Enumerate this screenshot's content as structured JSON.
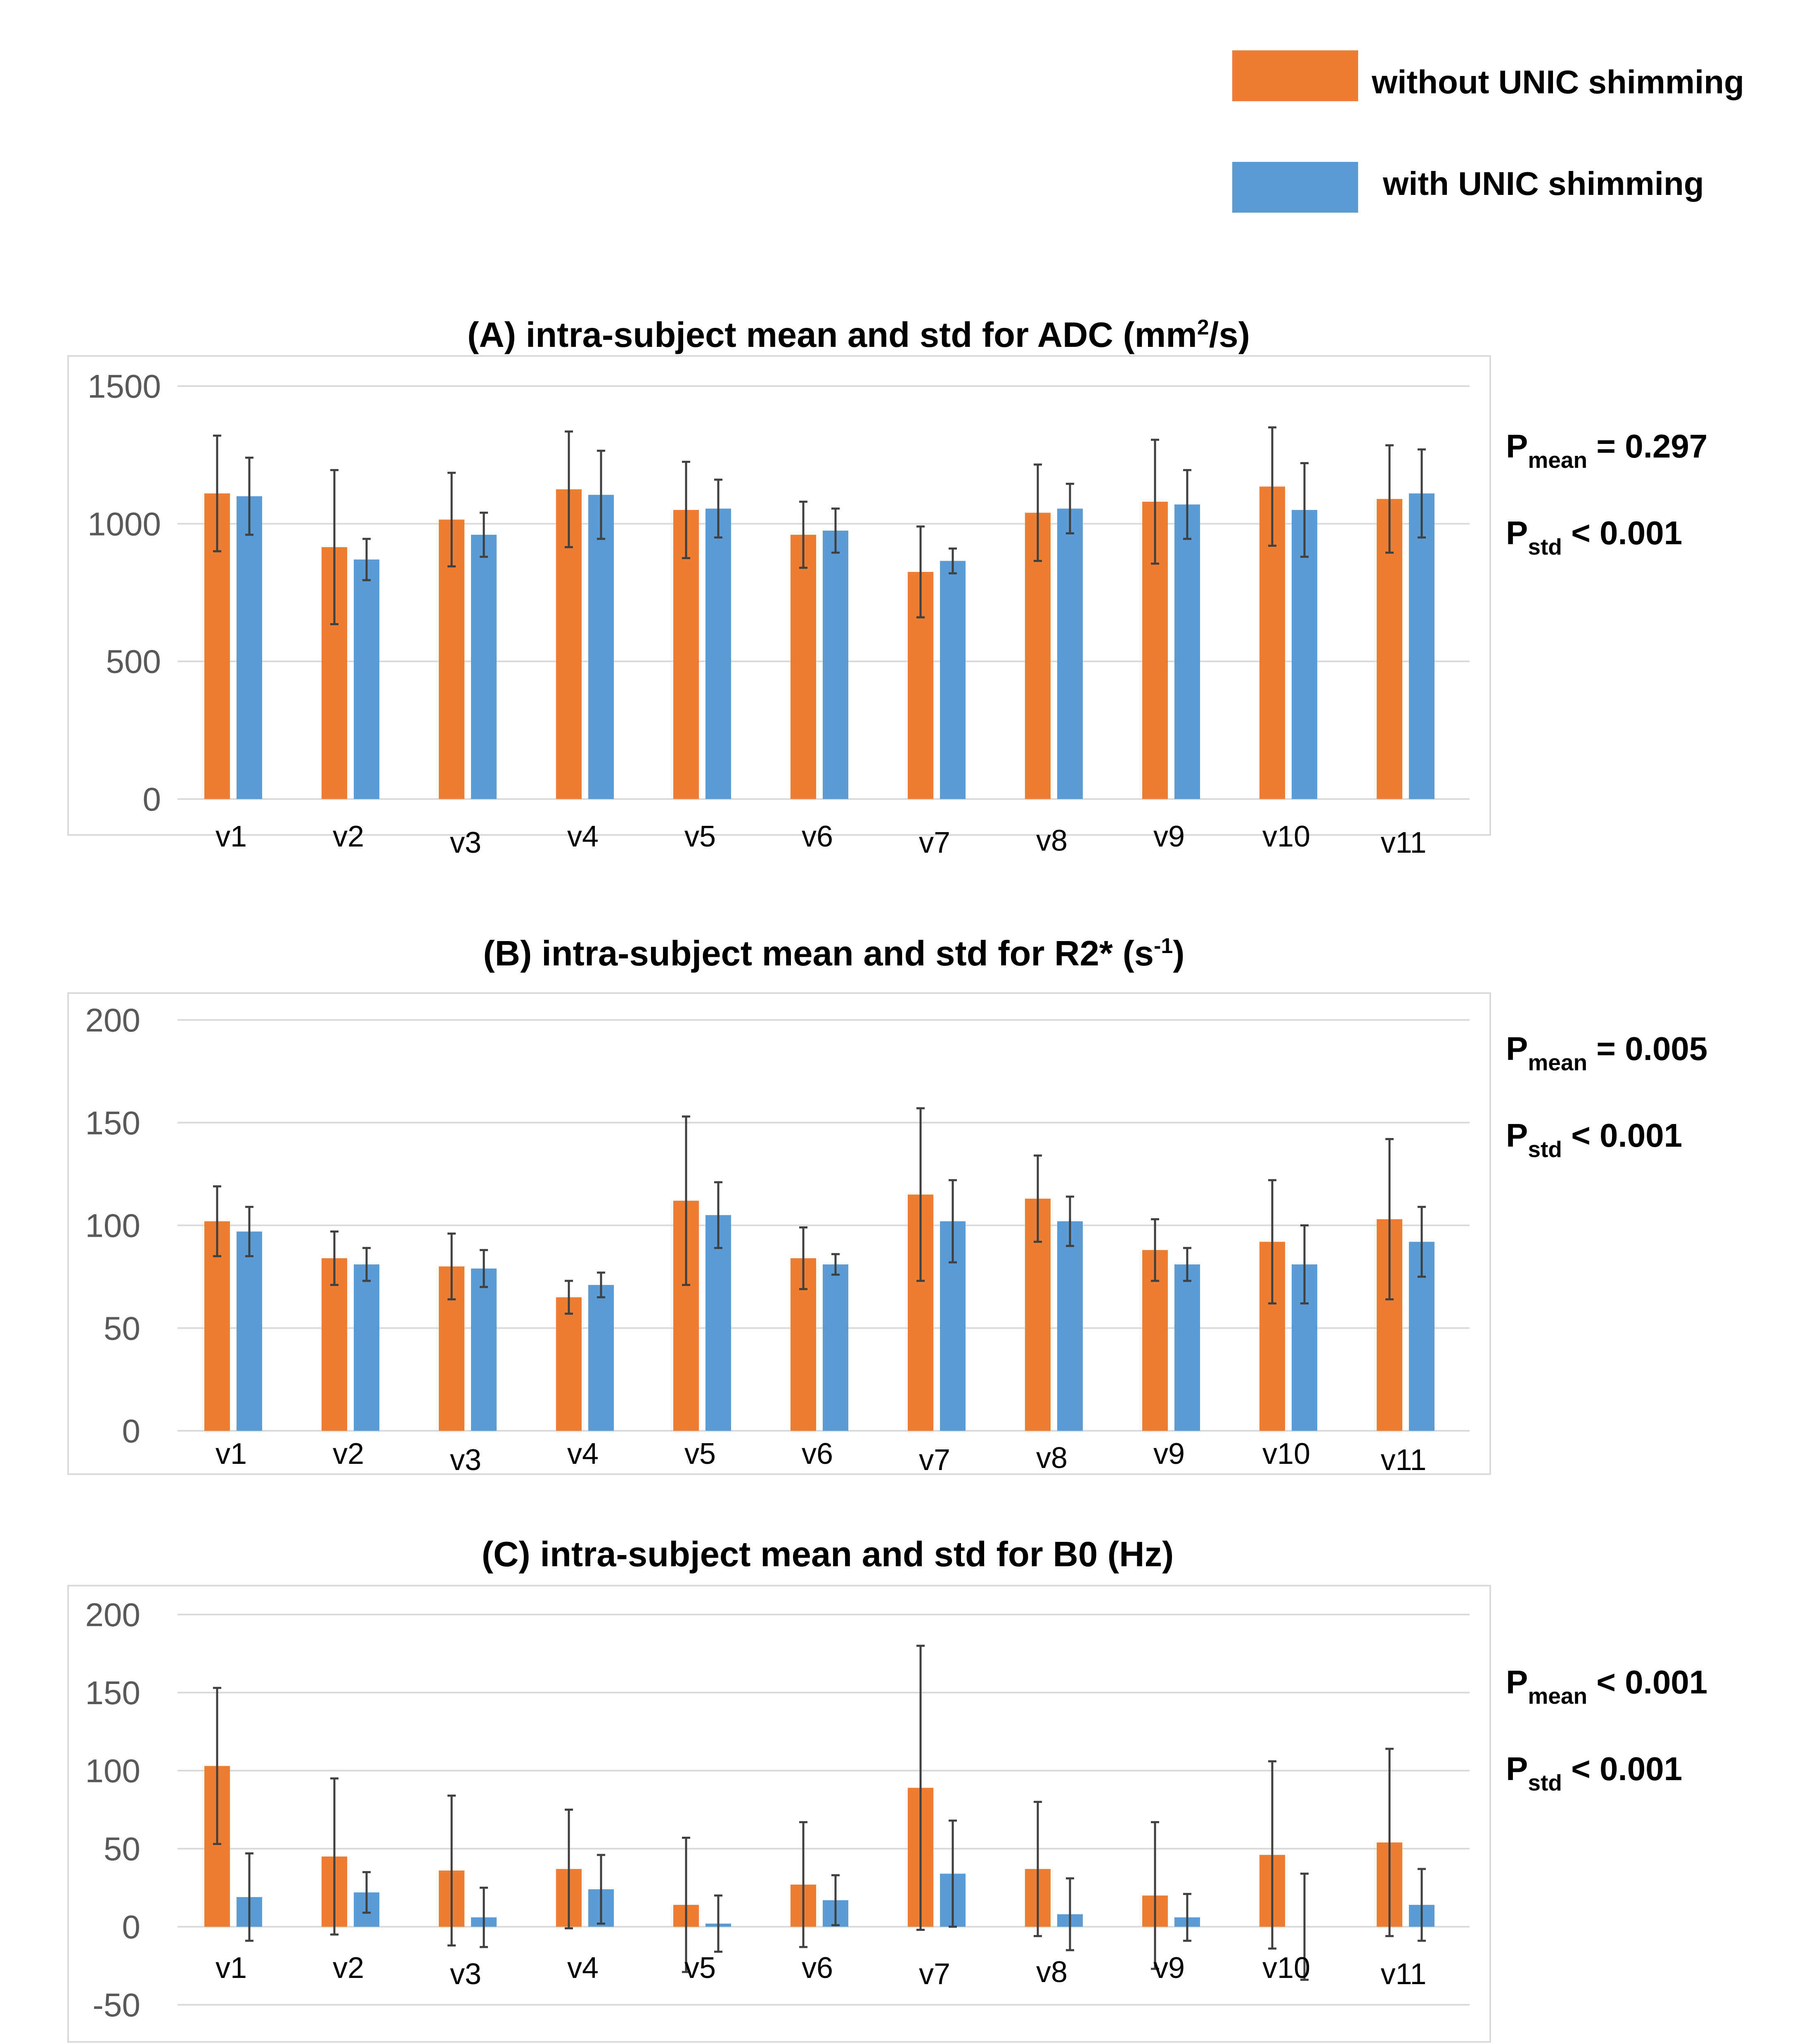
{
  "legend": [
    {
      "label": "without UNIC shimming",
      "color": "#ED7D31"
    },
    {
      "label": "with UNIC shimming",
      "color": "#5B9BD5"
    }
  ],
  "chart_data": [
    {
      "type": "bar",
      "title_main": "(A) intra-subject mean and std for ADC (mm",
      "title_sup": "2",
      "title_end": "/s)",
      "categories": [
        "v1",
        "v2",
        "v3",
        "v4",
        "v5",
        "v6",
        "v7",
        "v8",
        "v9",
        "v10",
        "v11"
      ],
      "ylim": [
        0,
        1500
      ],
      "yticks": [
        0,
        500,
        1000,
        1500
      ],
      "ytick_labels": [
        "0",
        "500",
        "1000",
        "1500"
      ],
      "series": [
        {
          "name": "without UNIC shimming",
          "values": [
            1110,
            915,
            1015,
            1125,
            1050,
            960,
            825,
            1040,
            1080,
            1135,
            1090
          ],
          "errors": [
            210,
            280,
            170,
            210,
            175,
            120,
            165,
            175,
            225,
            215,
            195
          ]
        },
        {
          "name": "with UNIC shimming",
          "values": [
            1100,
            870,
            960,
            1105,
            1055,
            975,
            865,
            1055,
            1070,
            1050,
            1110
          ],
          "errors": [
            140,
            75,
            80,
            160,
            105,
            80,
            45,
            90,
            125,
            170,
            160
          ]
        }
      ],
      "pvalues": [
        {
          "sym": "P",
          "sub": "mean",
          "rest": " = 0.297"
        },
        {
          "sym": "P",
          "sub": "std",
          "rest": " < 0.001"
        }
      ]
    },
    {
      "type": "bar",
      "title_main": "(B) intra-subject mean and std for R2* (s",
      "title_sup": "-1",
      "title_end": ")",
      "categories": [
        "v1",
        "v2",
        "v3",
        "v4",
        "v5",
        "v6",
        "v7",
        "v8",
        "v9",
        "v10",
        "v11"
      ],
      "ylim": [
        0,
        200
      ],
      "yticks": [
        0,
        50,
        100,
        150,
        200
      ],
      "ytick_labels": [
        "0",
        "50",
        "100",
        "150",
        "200"
      ],
      "series": [
        {
          "name": "without UNIC shimming",
          "values": [
            102,
            84,
            80,
            65,
            112,
            84,
            115,
            113,
            88,
            92,
            103
          ],
          "errors": [
            17,
            13,
            16,
            8,
            41,
            15,
            42,
            21,
            15,
            30,
            39
          ]
        },
        {
          "name": "with UNIC shimming",
          "values": [
            97,
            81,
            79,
            71,
            105,
            81,
            102,
            102,
            81,
            81,
            92
          ],
          "errors": [
            12,
            8,
            9,
            6,
            16,
            5,
            20,
            12,
            8,
            19,
            17
          ]
        }
      ],
      "pvalues": [
        {
          "sym": "P",
          "sub": "mean",
          "rest": " = 0.005"
        },
        {
          "sym": "P",
          "sub": "std",
          "rest": " < 0.001"
        }
      ]
    },
    {
      "type": "bar",
      "title_main": "(C) intra-subject mean and std for B0 (Hz)",
      "title_sup": "",
      "title_end": "",
      "categories": [
        "v1",
        "v2",
        "v3",
        "v4",
        "v5",
        "v6",
        "v7",
        "v8",
        "v9",
        "v10",
        "v11"
      ],
      "ylim": [
        -50,
        200
      ],
      "yticks": [
        -50,
        0,
        50,
        100,
        150,
        200
      ],
      "ytick_labels": [
        "-50",
        "0",
        "50",
        "100",
        "150",
        "200"
      ],
      "series": [
        {
          "name": "without UNIC shimming",
          "values": [
            103,
            45,
            36,
            37,
            14,
            27,
            89,
            37,
            20,
            46,
            54
          ],
          "errors": [
            50,
            50,
            48,
            38,
            43,
            40,
            91,
            43,
            47,
            60,
            60
          ]
        },
        {
          "name": "with UNIC shimming",
          "values": [
            19,
            22,
            6,
            24,
            2,
            17,
            34,
            8,
            6,
            0,
            14
          ],
          "errors": [
            28,
            13,
            19,
            22,
            18,
            16,
            34,
            23,
            15,
            34,
            23
          ]
        }
      ],
      "pvalues": [
        {
          "sym": "P",
          "sub": "mean",
          "rest": " < 0.001"
        },
        {
          "sym": "P",
          "sub": "std",
          "rest": " < 0.001"
        }
      ]
    }
  ]
}
